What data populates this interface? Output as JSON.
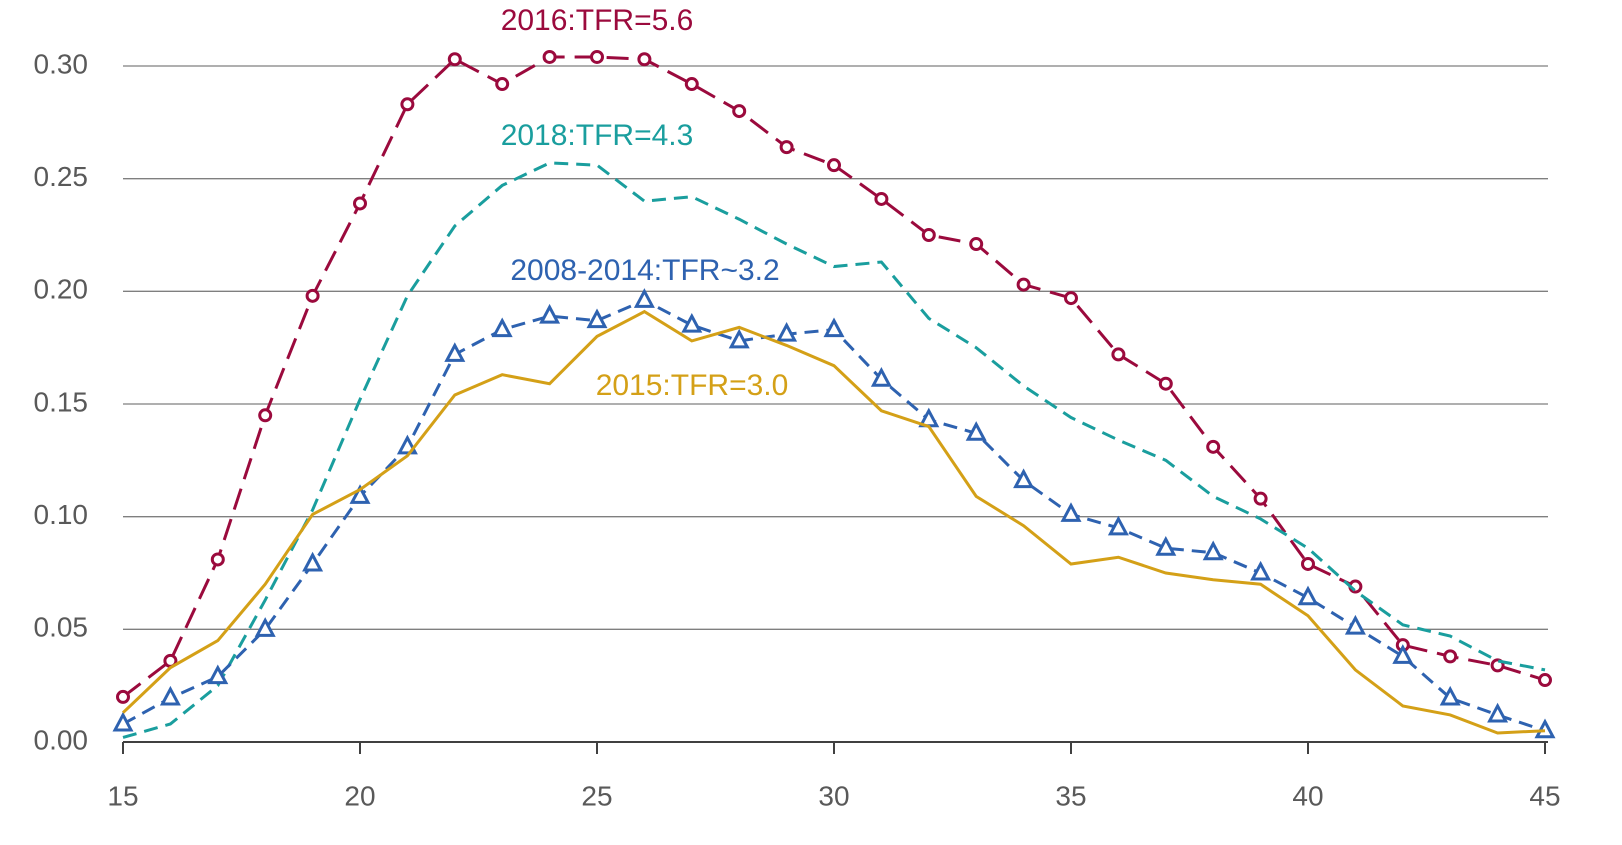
{
  "chart_data": {
    "type": "line",
    "x": [
      15,
      16,
      17,
      18,
      19,
      20,
      21,
      22,
      23,
      24,
      25,
      26,
      27,
      28,
      29,
      30,
      31,
      32,
      33,
      34,
      35,
      36,
      37,
      38,
      39,
      40,
      41,
      42,
      43,
      44,
      45
    ],
    "xlim": [
      15,
      45
    ],
    "xticks": [
      15,
      20,
      25,
      30,
      35,
      40,
      45
    ],
    "ylim": [
      0,
      0.3
    ],
    "yticks": [
      {
        "value": 0,
        "label": "0.00"
      },
      {
        "value": 0.05,
        "label": "0.05"
      },
      {
        "value": 0.1,
        "label": "0.10"
      },
      {
        "value": 0.15,
        "label": "0.15"
      },
      {
        "value": 0.2,
        "label": "0.20"
      },
      {
        "value": 0.25,
        "label": "0.25"
      },
      {
        "value": 0.3,
        "label": "0.30"
      }
    ],
    "grid": true,
    "series": [
      {
        "name": "2016:TFR=5.6",
        "color": "#9b0a3d",
        "dash": "long-dash",
        "marker": "circle",
        "values": [
          0.02,
          0.036,
          0.081,
          0.145,
          0.198,
          0.239,
          0.283,
          0.303,
          0.292,
          0.304,
          0.304,
          0.303,
          0.292,
          0.28,
          0.264,
          0.256,
          0.241,
          0.225,
          0.221,
          0.203,
          0.197,
          0.172,
          0.159,
          0.131,
          0.108,
          0.079,
          0.069,
          0.043,
          0.038,
          0.034,
          0.0275
        ]
      },
      {
        "name": "2018:TFR=4.3",
        "color": "#1a9e9e",
        "dash": "dash",
        "marker": null,
        "values": [
          0.002,
          0.008,
          0.025,
          0.063,
          0.103,
          0.152,
          0.198,
          0.229,
          0.247,
          0.257,
          0.256,
          0.24,
          0.242,
          0.232,
          0.221,
          0.211,
          0.213,
          0.188,
          0.175,
          0.158,
          0.144,
          0.134,
          0.125,
          0.109,
          0.099,
          0.086,
          0.067,
          0.052,
          0.047,
          0.036,
          0.032
        ]
      },
      {
        "name": "2008-2014:TFR~3.2",
        "color": "#2e62b0",
        "dash": "dash",
        "marker": "triangle",
        "values": [
          0.008,
          0.0195,
          0.029,
          0.05,
          0.079,
          0.109,
          0.131,
          0.172,
          0.183,
          0.189,
          0.187,
          0.196,
          0.185,
          0.178,
          0.181,
          0.183,
          0.161,
          0.143,
          0.137,
          0.116,
          0.101,
          0.095,
          0.086,
          0.084,
          0.075,
          0.064,
          0.051,
          0.038,
          0.0195,
          0.012,
          0.005
        ]
      },
      {
        "name": "2015:TFR=3.0",
        "color": "#d4a017",
        "dash": "solid",
        "marker": null,
        "values": [
          0.013,
          0.033,
          0.045,
          0.07,
          0.101,
          0.112,
          0.127,
          0.154,
          0.163,
          0.159,
          0.18,
          0.191,
          0.178,
          0.184,
          0.176,
          0.167,
          0.147,
          0.14,
          0.109,
          0.096,
          0.079,
          0.082,
          0.075,
          0.072,
          0.07,
          0.056,
          0.032,
          0.016,
          0.012,
          0.004,
          0.005
        ]
      }
    ]
  }
}
